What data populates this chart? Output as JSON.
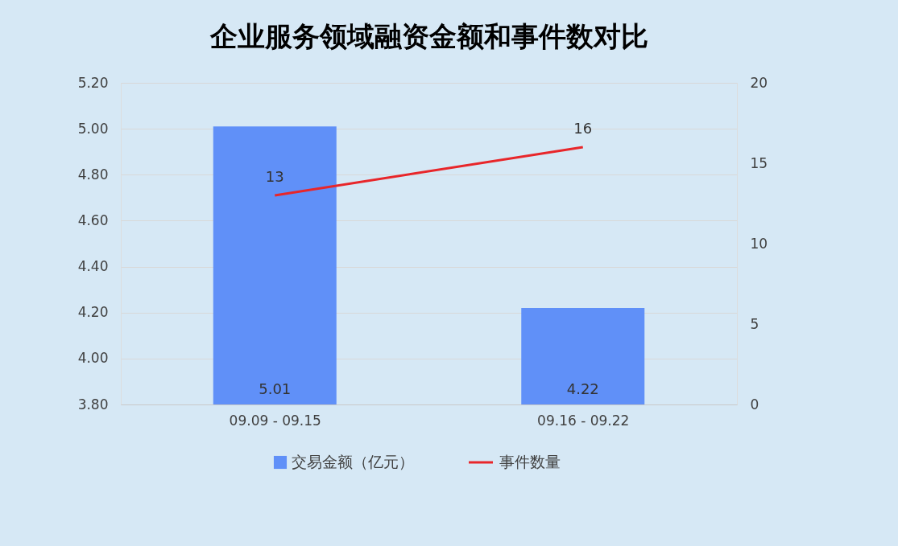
{
  "chart_data": {
    "type": "bar",
    "title": "企业服务领域融资金额和事件数对比",
    "categories": [
      "09.09 - 09.15",
      "09.16 - 09.22"
    ],
    "series": [
      {
        "name": "交易金额（亿元）",
        "color": "#6090f8",
        "values": [
          5.01,
          4.22
        ]
      },
      {
        "name": "事件数量",
        "type": "line",
        "axis": "y2",
        "color": "#e8262a",
        "values": [
          13,
          16
        ]
      }
    ],
    "ylim": [
      3.8,
      5.2
    ],
    "yticks": [
      {
        "value": 3.8,
        "label": "3.80"
      },
      {
        "value": 4.0,
        "label": "4.00"
      },
      {
        "value": 4.2,
        "label": "4.20"
      },
      {
        "value": 4.4,
        "label": "4.40"
      },
      {
        "value": 4.6,
        "label": "4.60"
      },
      {
        "value": 4.8,
        "label": "4.80"
      },
      {
        "value": 5.0,
        "label": "5.00"
      },
      {
        "value": 5.2,
        "label": "5.20"
      }
    ],
    "y2lim": [
      0,
      20
    ],
    "y2ticks": [
      0,
      5,
      10,
      15,
      20
    ],
    "grid": "y",
    "legend": "bottom",
    "data_labels": true,
    "marker": "none"
  }
}
